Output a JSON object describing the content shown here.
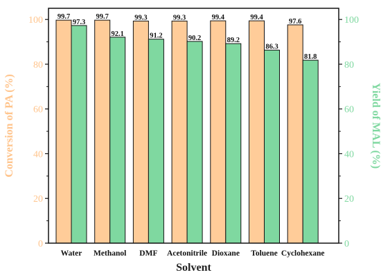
{
  "chart_data": {
    "type": "bar",
    "xlabel": "Solvent",
    "categories": [
      "Water",
      "Methanol",
      "DMF",
      "Acetonitrile",
      "Dioxane",
      "Toluene",
      "Cyclohexane"
    ],
    "series": [
      {
        "name": "Conversion of PA (%)",
        "axis": "left",
        "color": "#FFCC99",
        "values": [
          99.7,
          99.7,
          99.3,
          99.3,
          99.4,
          99.4,
          97.6
        ],
        "labels": [
          "99.7",
          "99.7",
          "99.3",
          "99.3",
          "99.4",
          "99.4",
          "97.6"
        ]
      },
      {
        "name": "Yield of MAL (%)",
        "axis": "right",
        "color": "#7FD8A0",
        "values": [
          97.3,
          92.1,
          91.2,
          90.2,
          89.2,
          86.3,
          81.8
        ],
        "labels": [
          "97.3",
          "92.1",
          "91.2",
          "90.2",
          "89.2",
          "86.3",
          "81.8"
        ]
      }
    ],
    "left_axis": {
      "label": "Conversion of PA (%)",
      "color": "#FFC48C",
      "ylim": [
        0,
        105
      ],
      "ticks": [
        "0",
        "20",
        "40",
        "60",
        "80",
        "100"
      ]
    },
    "right_axis": {
      "label": "Yield of MAL (%)",
      "color": "#7FD8A0",
      "ylim": [
        0,
        105
      ],
      "ticks": [
        "0",
        "20",
        "40",
        "60",
        "80",
        "100"
      ]
    },
    "grid": false,
    "legend": "none"
  }
}
